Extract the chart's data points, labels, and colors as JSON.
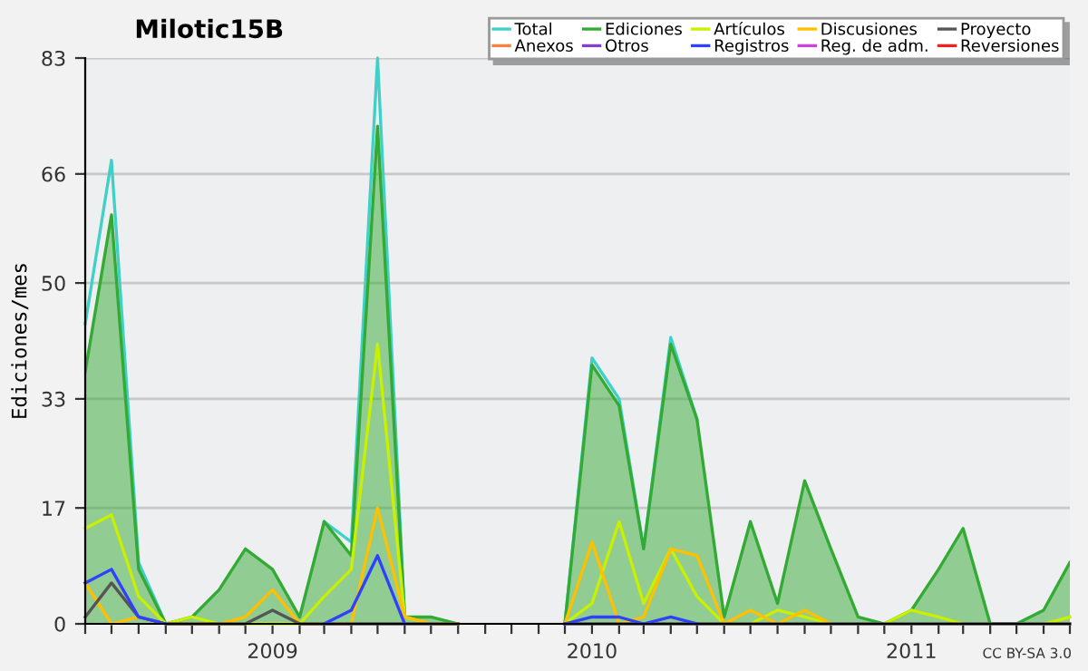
{
  "chart_data": {
    "type": "line",
    "title": "Milotic15B",
    "ylabel": "Ediciones/mes",
    "annotations": [
      "CC BY-SA 3.0"
    ],
    "x": [
      "2008-06",
      "2008-07",
      "2008-08",
      "2008-09",
      "2008-10",
      "2008-11",
      "2008-12",
      "2009-01",
      "2009-02",
      "2009-03",
      "2009-04",
      "2009-05",
      "2009-06",
      "2009-07",
      "2009-08",
      "2009-09",
      "2009-10",
      "2009-11",
      "2009-12",
      "2010-01",
      "2010-02",
      "2010-03",
      "2010-04",
      "2010-05",
      "2010-06",
      "2010-07",
      "2010-08",
      "2010-09",
      "2010-10",
      "2010-11",
      "2010-12",
      "2011-01",
      "2011-02",
      "2011-03",
      "2011-04",
      "2011-05",
      "2011-06",
      "2011-07"
    ],
    "xlim": [
      "2008-06",
      "2011-07"
    ],
    "xticks": [
      {
        "value": "2008-06",
        "label": null
      },
      {
        "value": "2008-07",
        "label": null
      },
      {
        "value": "2008-08",
        "label": null
      },
      {
        "value": "2008-09",
        "label": null
      },
      {
        "value": "2008-10",
        "label": null
      },
      {
        "value": "2008-11",
        "label": null
      },
      {
        "value": "2008-12",
        "label": null
      },
      {
        "value": "2009-01",
        "label": "2009"
      },
      {
        "value": "2009-02",
        "label": null
      },
      {
        "value": "2009-03",
        "label": null
      },
      {
        "value": "2009-04",
        "label": null
      },
      {
        "value": "2009-05",
        "label": null
      },
      {
        "value": "2009-06",
        "label": null
      },
      {
        "value": "2009-07",
        "label": null
      },
      {
        "value": "2009-08",
        "label": null
      },
      {
        "value": "2009-09",
        "label": null
      },
      {
        "value": "2009-10",
        "label": null
      },
      {
        "value": "2009-11",
        "label": null
      },
      {
        "value": "2009-12",
        "label": null
      },
      {
        "value": "2010-01",
        "label": "2010"
      },
      {
        "value": "2010-02",
        "label": null
      },
      {
        "value": "2010-03",
        "label": null
      },
      {
        "value": "2010-04",
        "label": null
      },
      {
        "value": "2010-05",
        "label": null
      },
      {
        "value": "2010-06",
        "label": null
      },
      {
        "value": "2010-07",
        "label": null
      },
      {
        "value": "2010-08",
        "label": null
      },
      {
        "value": "2010-09",
        "label": null
      },
      {
        "value": "2010-10",
        "label": null
      },
      {
        "value": "2010-11",
        "label": null
      },
      {
        "value": "2010-12",
        "label": null
      },
      {
        "value": "2011-01",
        "label": "2011"
      },
      {
        "value": "2011-02",
        "label": null
      },
      {
        "value": "2011-03",
        "label": null
      },
      {
        "value": "2011-04",
        "label": null
      },
      {
        "value": "2011-05",
        "label": null
      },
      {
        "value": "2011-06",
        "label": null
      },
      {
        "value": "2011-07",
        "label": null
      }
    ],
    "ylim": [
      0,
      83
    ],
    "yticks": [
      0,
      17,
      33,
      50,
      66,
      83
    ],
    "grid": "y",
    "legend": "top right",
    "series": [
      {
        "name": "Total",
        "color": "#40d0c8",
        "values": [
          44,
          68,
          9,
          0,
          null,
          null,
          null,
          null,
          null,
          15,
          12,
          83,
          1,
          null,
          null,
          null,
          null,
          null,
          0,
          39,
          33,
          11,
          42,
          30,
          null,
          null,
          null,
          null,
          null,
          null,
          null,
          null,
          null,
          null,
          null,
          null,
          null,
          null
        ]
      },
      {
        "name": "Ediciones",
        "type": "area",
        "color": "#33aa33",
        "values": [
          37,
          60,
          8,
          0,
          1,
          5,
          11,
          8,
          1,
          15,
          10,
          73,
          1,
          1,
          0,
          null,
          null,
          null,
          0,
          38,
          32,
          11,
          41,
          30,
          1,
          15,
          3,
          21,
          11,
          1,
          0,
          2,
          8,
          14,
          0,
          0,
          2,
          9
        ]
      },
      {
        "name": "Artículos",
        "color": "#c8f000",
        "values": [
          14,
          16,
          4,
          0,
          1,
          0,
          0,
          0,
          0,
          4,
          8,
          41,
          1,
          0,
          0,
          null,
          null,
          null,
          0,
          3,
          15,
          3,
          11,
          4,
          0,
          0,
          2,
          1,
          0,
          null,
          0,
          2,
          1,
          0,
          null,
          null,
          0,
          1
        ]
      },
      {
        "name": "Discusiones",
        "color": "#ffc000",
        "values": [
          6,
          0,
          1,
          0,
          0,
          0,
          1,
          5,
          0,
          0,
          0,
          17,
          1,
          0,
          0,
          null,
          null,
          null,
          0,
          12,
          0,
          1,
          11,
          10,
          0,
          2,
          0,
          2,
          0,
          null,
          null,
          null,
          null,
          null,
          null,
          null,
          null,
          null
        ]
      },
      {
        "name": "Proyecto",
        "color": "#555555",
        "values": [
          1,
          6,
          1,
          0,
          0,
          0,
          0,
          2,
          0,
          0,
          0,
          0,
          0,
          0,
          0,
          null,
          null,
          null,
          0,
          0,
          0,
          0,
          0,
          0,
          0,
          0,
          0,
          0,
          0,
          0,
          0,
          0,
          0,
          0,
          0,
          0,
          0,
          0
        ]
      },
      {
        "name": "Anexos",
        "color": "#ff7f3f",
        "values": [
          null,
          null,
          null,
          null,
          null,
          null,
          null,
          null,
          null,
          null,
          null,
          null,
          null,
          null,
          null,
          null,
          null,
          null,
          null,
          null,
          null,
          null,
          null,
          null,
          null,
          null,
          null,
          null,
          null,
          null,
          null,
          null,
          null,
          null,
          null,
          null,
          null,
          null
        ]
      },
      {
        "name": "Otros",
        "color": "#8040d0",
        "values": [
          null,
          null,
          null,
          null,
          null,
          null,
          null,
          null,
          null,
          null,
          null,
          null,
          null,
          null,
          null,
          null,
          null,
          null,
          null,
          null,
          null,
          null,
          null,
          null,
          null,
          null,
          null,
          null,
          null,
          null,
          null,
          null,
          null,
          null,
          null,
          null,
          null,
          null
        ]
      },
      {
        "name": "Registros",
        "color": "#3040ff",
        "values": [
          6,
          8,
          1,
          0,
          null,
          null,
          null,
          null,
          null,
          0,
          2,
          10,
          0,
          null,
          null,
          null,
          null,
          null,
          0,
          1,
          1,
          0,
          1,
          0,
          null,
          null,
          null,
          null,
          null,
          null,
          null,
          null,
          null,
          null,
          null,
          null,
          null,
          null
        ]
      },
      {
        "name": "Reg. de adm.",
        "color": "#d040e0",
        "values": [
          null,
          null,
          null,
          null,
          null,
          null,
          null,
          null,
          null,
          null,
          null,
          null,
          null,
          null,
          null,
          null,
          null,
          null,
          null,
          null,
          null,
          null,
          null,
          null,
          null,
          null,
          null,
          null,
          null,
          null,
          null,
          null,
          null,
          null,
          null,
          null,
          null,
          null
        ]
      },
      {
        "name": "Reversiones",
        "color": "#ee2222",
        "values": [
          null,
          null,
          null,
          null,
          null,
          null,
          null,
          null,
          null,
          null,
          null,
          null,
          null,
          null,
          null,
          null,
          null,
          null,
          null,
          null,
          null,
          null,
          null,
          null,
          null,
          null,
          null,
          null,
          null,
          null,
          null,
          null,
          null,
          null,
          null,
          null,
          null,
          null
        ]
      }
    ]
  }
}
